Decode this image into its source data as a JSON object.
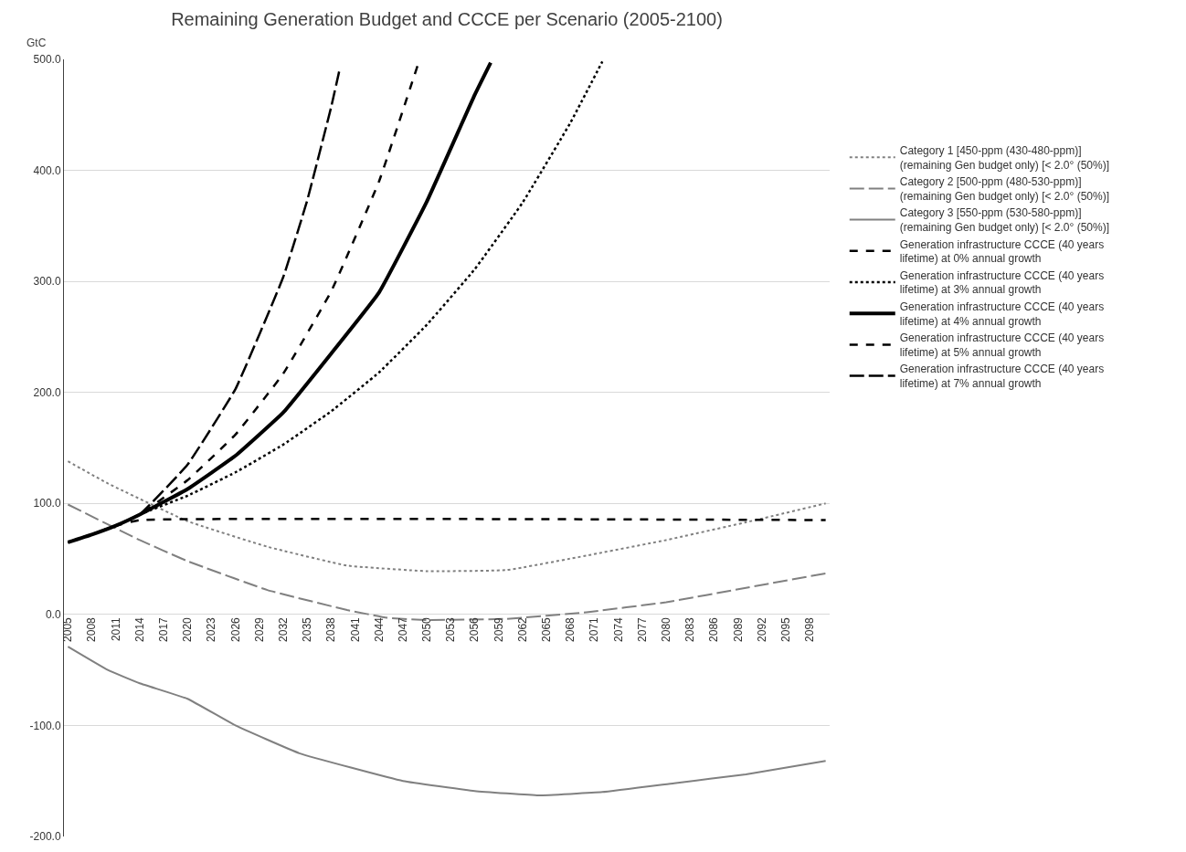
{
  "chart_data": {
    "type": "line",
    "title": "Remaining Generation Budget and CCCE per Scenario (2005-2100)",
    "ylabel": "GtC",
    "xlim": [
      2004.5,
      2100.5
    ],
    "xticks": [
      2005,
      2008,
      2011,
      2014,
      2017,
      2020,
      2023,
      2026,
      2029,
      2032,
      2035,
      2038,
      2041,
      2044,
      2047,
      2050,
      2053,
      2056,
      2059,
      2062,
      2065,
      2068,
      2071,
      2074,
      2077,
      2080,
      2083,
      2086,
      2089,
      2092,
      2095,
      2098
    ],
    "ylim": [
      -200,
      500
    ],
    "yticks": [
      {
        "value": -200,
        "label": "-200.0"
      },
      {
        "value": -100,
        "label": "-100.0"
      },
      {
        "value": 0,
        "label": "0.0"
      },
      {
        "value": 100,
        "label": "100.0"
      },
      {
        "value": 200,
        "label": "200.0"
      },
      {
        "value": 300,
        "label": "300.0"
      },
      {
        "value": 400,
        "label": "400.0"
      },
      {
        "value": 500,
        "label": "500.0"
      }
    ],
    "grid": "y",
    "legend": "right",
    "marker": "none",
    "series": [
      {
        "name": "Category 1 [450-ppm (430-480-ppm)]\n(remaining Gen budget only) [< 2.0° (50%)]",
        "color": "#808080",
        "line_style": "dotted",
        "x": [
          2005,
          2010,
          2020,
          2030,
          2040,
          2050,
          2060,
          2070,
          2080,
          2090,
          2100
        ],
        "values": [
          138,
          118,
          84,
          61,
          44,
          39,
          40,
          53,
          67,
          83,
          100
        ]
      },
      {
        "name": "Category 2 [500-ppm (480-530-ppm)]\n(remaining Gen budget only) [< 2.0° (50%)]",
        "color": "#808080",
        "line_style": "long dashed",
        "x": [
          2005,
          2014,
          2020,
          2030,
          2040,
          2045,
          2050,
          2060,
          2070,
          2080,
          2090,
          2100
        ],
        "values": [
          99,
          67,
          48,
          22,
          4,
          -3,
          -5,
          -4,
          2,
          11,
          24,
          37
        ]
      },
      {
        "name": "Category 3 [550-ppm (530-580-ppm)]\n(remaining Gen budget only) [< 2.0° (50%)]",
        "color": "#808080",
        "line_style": "solid",
        "x": [
          2005,
          2010,
          2014,
          2020,
          2026,
          2034,
          2047,
          2056,
          2064,
          2072,
          2081,
          2090,
          2100
        ],
        "values": [
          -29,
          -50,
          -62,
          -76,
          -100,
          -125,
          -150,
          -159,
          -163,
          -160,
          -152,
          -144,
          -132
        ]
      },
      {
        "name": "Generation infrastructure CCCE (40 years\nlifetime) at 0% annual growth",
        "color": "#000000",
        "line_style": "dashed",
        "x": [
          2005,
          2008,
          2011,
          2014,
          2100
        ],
        "values": [
          65,
          72,
          80,
          85,
          85
        ]
      },
      {
        "name": "Generation infrastructure CCCE (40 years\nlifetime) at 3% annual growth",
        "color": "#000000",
        "line_style": "dotted",
        "x": [
          2005,
          2008,
          2011,
          2014,
          2020,
          2026,
          2032,
          2038,
          2044,
          2050,
          2056,
          2062,
          2068,
          2072
        ],
        "values": [
          65,
          72,
          80,
          90,
          107,
          128,
          153,
          183,
          218,
          261,
          311,
          371,
          443,
          498
        ]
      },
      {
        "name": "Generation infrastructure CCCE (40 years\nlifetime) at 4% annual growth",
        "color": "#000000",
        "line_style": "solid",
        "x": [
          2005,
          2008,
          2011,
          2014,
          2020,
          2026,
          2032,
          2038,
          2044,
          2050,
          2056,
          2058
        ],
        "values": [
          65,
          72,
          80,
          90,
          113,
          143,
          182,
          235,
          290,
          372,
          468,
          497
        ]
      },
      {
        "name": "Generation infrastructure CCCE (40 years\nlifetime) at 5% annual growth",
        "color": "#000000",
        "line_style": "dashed",
        "x": [
          2005,
          2008,
          2011,
          2014,
          2020,
          2026,
          2032,
          2038,
          2044,
          2049
        ],
        "values": [
          65,
          72,
          80,
          90,
          121,
          162,
          217,
          291,
          390,
          498
        ]
      },
      {
        "name": "Generation infrastructure CCCE (40 years\nlifetime) at 7% annual growth",
        "color": "#000000",
        "line_style": "long dashed",
        "x": [
          2005,
          2008,
          2011,
          2014,
          2020,
          2026,
          2032,
          2035,
          2038,
          2039
        ],
        "values": [
          65,
          72,
          80,
          90,
          135,
          203,
          304,
          373,
          457,
          489
        ]
      }
    ]
  }
}
